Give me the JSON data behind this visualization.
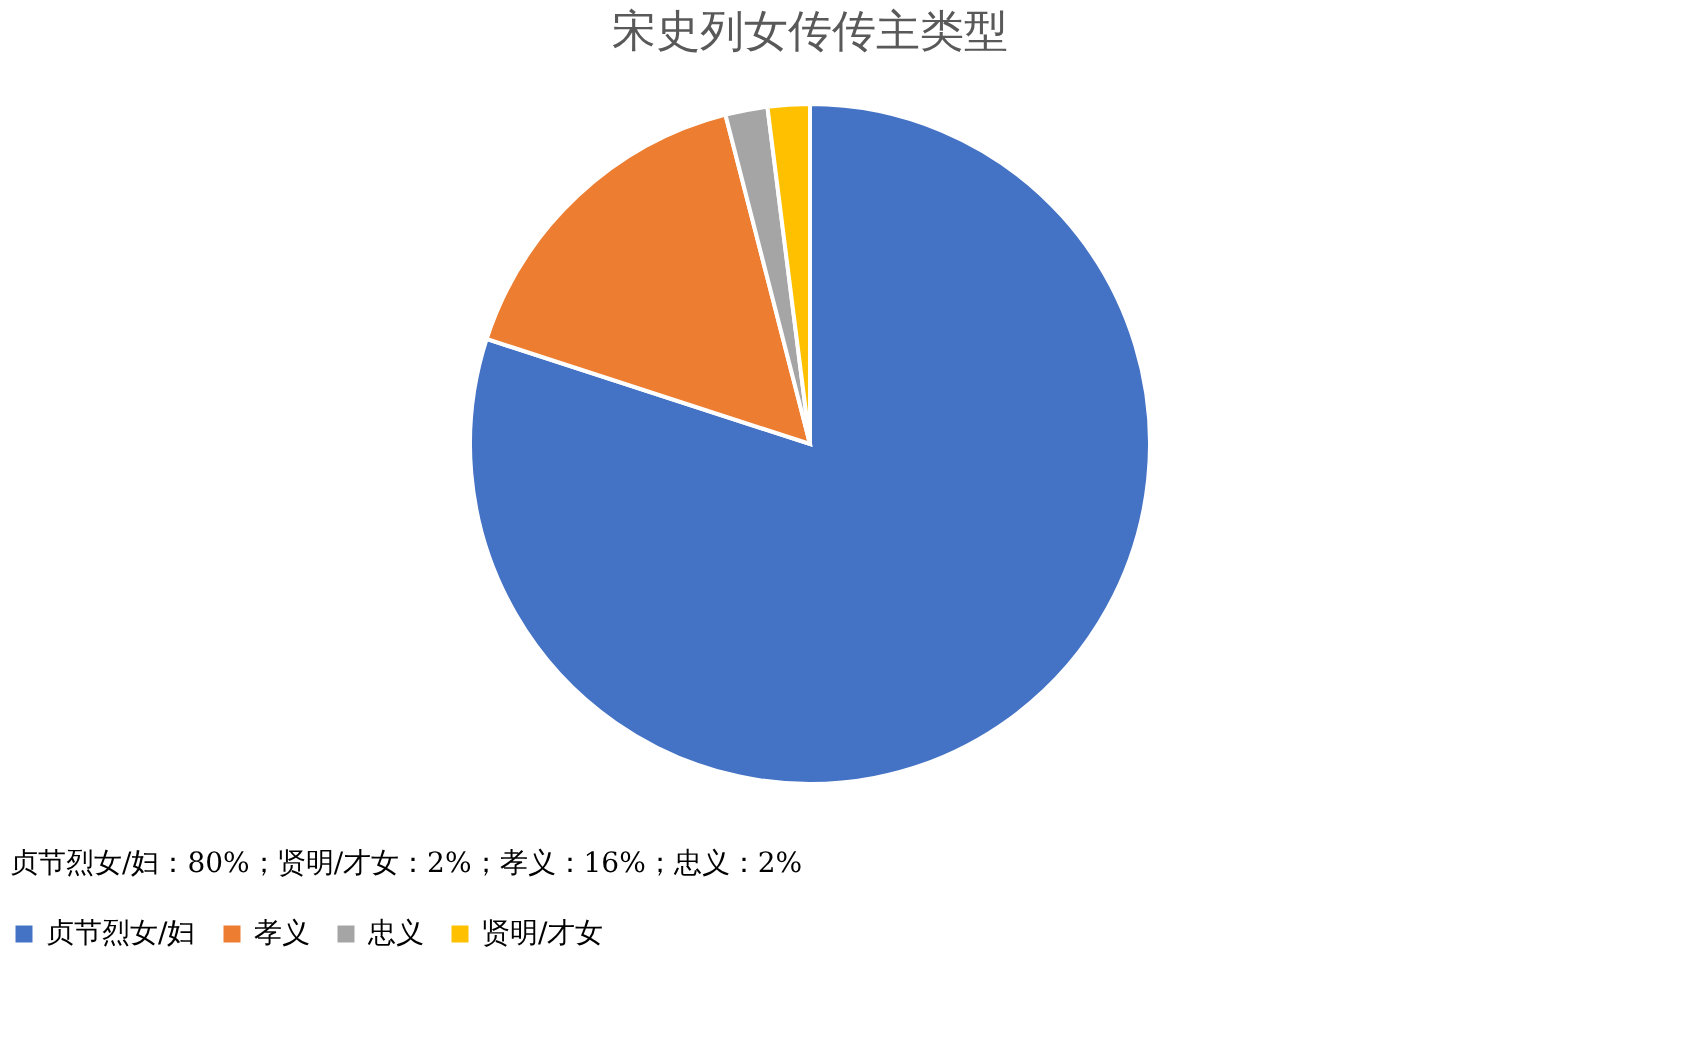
{
  "chart_data": {
    "type": "pie",
    "title": "宋史列女传传主类型",
    "categories": [
      "贞节烈女/妇",
      "孝义",
      "忠义",
      "贤明/才女"
    ],
    "values": [
      80,
      16,
      2,
      2
    ],
    "colors": [
      "#4472c4",
      "#ed7d31",
      "#a5a5a5",
      "#ffc000"
    ],
    "legend": "bottom",
    "annotations": [
      "贞节烈女/妇：80%；贤明/才女：2%；孝义：16%；忠义：2%"
    ]
  }
}
